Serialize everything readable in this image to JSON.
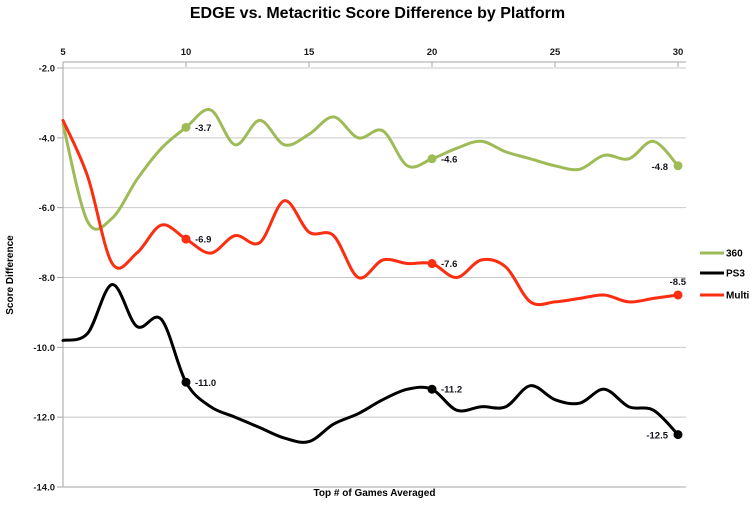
{
  "title": "EDGE vs. Metacritic Score Difference by Platform",
  "x_axis": {
    "title": "Top # of Games Averaged",
    "ticks": [
      5,
      10,
      15,
      20,
      25,
      30
    ]
  },
  "y_axis": {
    "title": "Score Difference",
    "tick_labels": [
      "-2.0",
      "-4.0",
      "-6.0",
      "-8.0",
      "-10.0",
      "-12.0",
      "-14.0"
    ],
    "tick_values": [
      -2,
      -4,
      -6,
      -8,
      -10,
      -12,
      -14
    ]
  },
  "legend": [
    {
      "label": "360",
      "color": "#9fbb58"
    },
    {
      "label": "PS3",
      "color": "#000000"
    },
    {
      "label": "Multi",
      "color": "#fb2e11"
    }
  ],
  "colors": {
    "grid": "#c9c9c9",
    "axis": "#a6a6a6",
    "tick_text": "#1a1a1a",
    "data_label": "#14141c",
    "background": "#ffffff"
  },
  "chart_data": {
    "type": "line",
    "title": "EDGE vs. Metacritic Score Difference by Platform",
    "xlabel": "Top # of Games Averaged",
    "ylabel": "Score Difference",
    "xlim": [
      5,
      30
    ],
    "ylim": [
      -14,
      -2
    ],
    "grid": true,
    "legend_position": "right",
    "x": [
      5,
      6,
      7,
      8,
      9,
      10,
      11,
      12,
      13,
      14,
      15,
      16,
      17,
      18,
      19,
      20,
      21,
      22,
      23,
      24,
      25,
      26,
      27,
      28,
      29,
      30
    ],
    "series": [
      {
        "name": "360",
        "color": "#9fbb58",
        "values": [
          -3.6,
          -6.4,
          -6.3,
          -5.2,
          -4.3,
          -3.7,
          -3.2,
          -4.2,
          -3.5,
          -4.2,
          -3.9,
          -3.4,
          -4.0,
          -3.8,
          -4.8,
          -4.6,
          -4.3,
          -4.1,
          -4.4,
          -4.6,
          -4.8,
          -4.9,
          -4.5,
          -4.6,
          -4.1,
          -4.8
        ]
      },
      {
        "name": "PS3",
        "color": "#000000",
        "values": [
          -9.8,
          -9.6,
          -8.2,
          -9.4,
          -9.2,
          -11.0,
          -11.7,
          -12.0,
          -12.3,
          -12.6,
          -12.7,
          -12.2,
          -11.9,
          -11.5,
          -11.2,
          -11.2,
          -11.8,
          -11.7,
          -11.7,
          -11.1,
          -11.5,
          -11.6,
          -11.2,
          -11.7,
          -11.8,
          -12.5
        ]
      },
      {
        "name": "Multi",
        "color": "#fb2e11",
        "values": [
          -3.5,
          -5.1,
          -7.6,
          -7.3,
          -6.5,
          -6.9,
          -7.3,
          -6.8,
          -7.0,
          -5.8,
          -6.7,
          -6.8,
          -8.0,
          -7.5,
          -7.6,
          -7.6,
          -8.0,
          -7.5,
          -7.7,
          -8.7,
          -8.7,
          -8.6,
          -8.5,
          -8.7,
          -8.6,
          -8.5
        ]
      }
    ],
    "callouts": [
      {
        "series": "360",
        "x": 10,
        "label": "-3.7",
        "pos": "right"
      },
      {
        "series": "360",
        "x": 20,
        "label": "-4.6",
        "pos": "right"
      },
      {
        "series": "360",
        "x": 30,
        "label": "-4.8",
        "pos": "left"
      },
      {
        "series": "PS3",
        "x": 10,
        "label": "-11.0",
        "pos": "right"
      },
      {
        "series": "PS3",
        "x": 20,
        "label": "-11.2",
        "pos": "right"
      },
      {
        "series": "PS3",
        "x": 30,
        "label": "-12.5",
        "pos": "left"
      },
      {
        "series": "Multi",
        "x": 10,
        "label": "-6.9",
        "pos": "right"
      },
      {
        "series": "Multi",
        "x": 20,
        "label": "-7.6",
        "pos": "right"
      },
      {
        "series": "Multi",
        "x": 30,
        "label": "-8.5",
        "pos": "above"
      }
    ]
  }
}
